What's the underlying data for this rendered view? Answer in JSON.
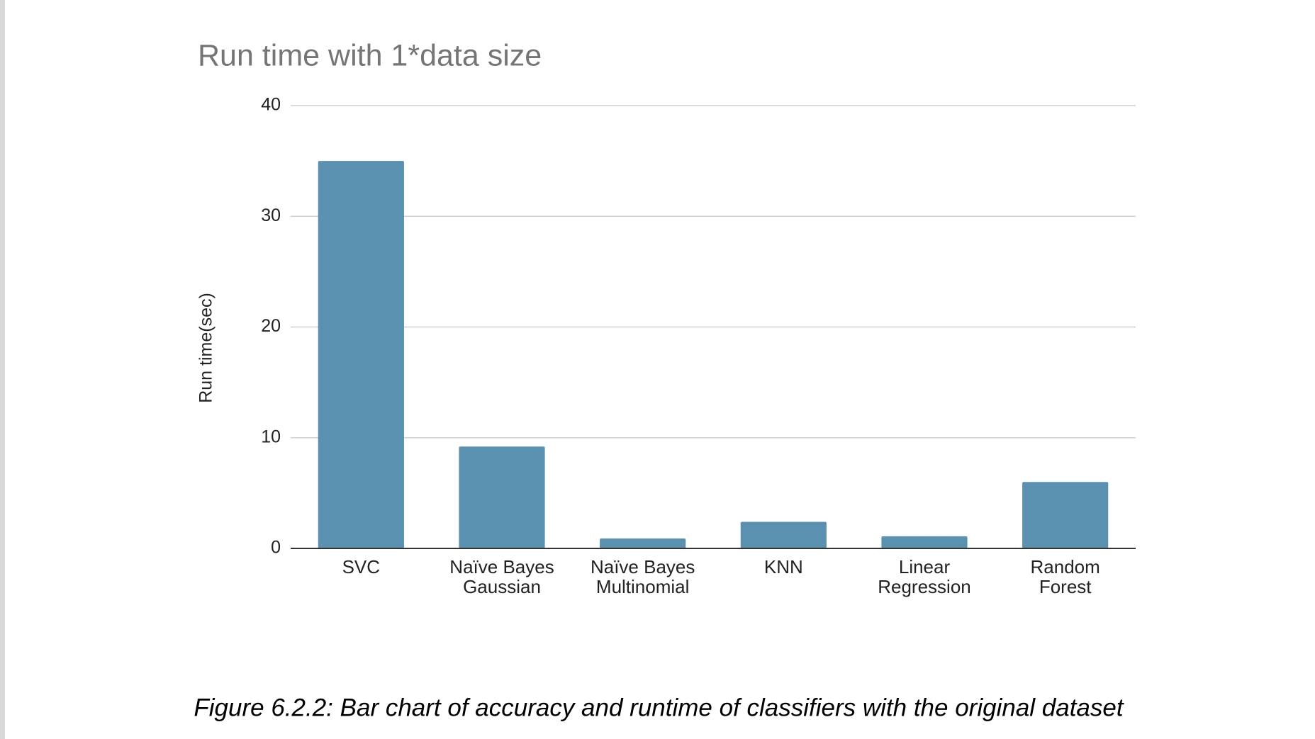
{
  "chart_data": {
    "type": "bar",
    "title": "Run time with 1*data size",
    "y_label": "Run time(sec)",
    "categories": [
      [
        "SVC"
      ],
      [
        "Naïve Bayes",
        "Gaussian"
      ],
      [
        "Naïve Bayes",
        "Multinomial"
      ],
      [
        "KNN"
      ],
      [
        "Linear",
        "Regression"
      ],
      [
        "Random",
        "Forest"
      ]
    ],
    "values": [
      35,
      9.2,
      0.9,
      2.4,
      1.1,
      6.0
    ],
    "color": "#5b91b0",
    "ylim": [
      0,
      40
    ],
    "yticks": [
      0,
      10,
      20,
      30,
      40
    ],
    "grid": true
  },
  "caption": "Figure 6.2.2: Bar chart of accuracy and runtime of classifiers with the original dataset"
}
